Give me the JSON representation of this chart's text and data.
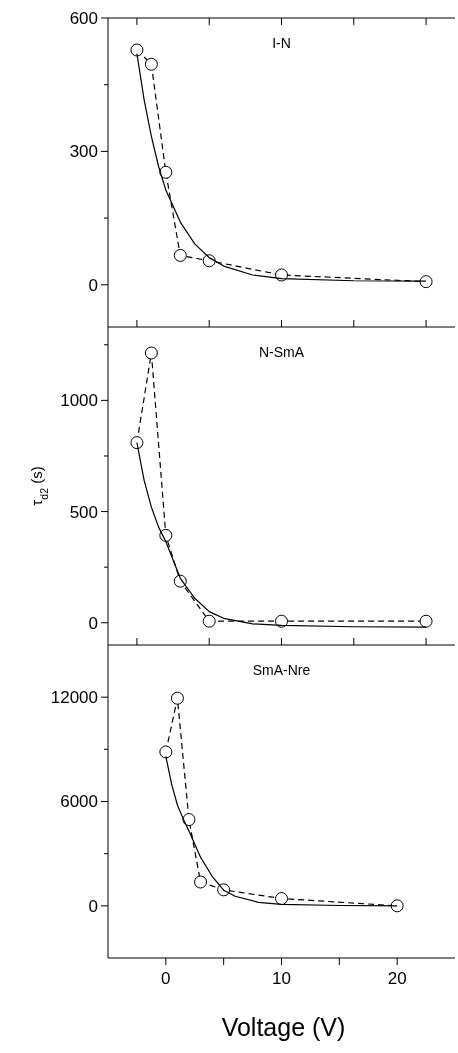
{
  "chart_data": [
    {
      "type": "line",
      "annotations": [
        "I-N"
      ],
      "xlim": [
        -5,
        25
      ],
      "xticks": [
        {
          "value": -2.5,
          "label": null
        },
        {
          "value": 3.75,
          "label": null
        },
        {
          "value": 10,
          "label": null
        },
        {
          "value": 16.25,
          "label": null
        },
        {
          "value": 22.5,
          "label": null
        }
      ],
      "ylim": [
        -95,
        600
      ],
      "yticks": [
        0,
        {
          "value": 150,
          "label": null
        },
        300,
        {
          "value": 450,
          "label": null
        },
        600
      ],
      "tick_labels": "y",
      "x": [
        -2.5,
        -1.25,
        0,
        1.25,
        3.75,
        10,
        22.5
      ],
      "series": [
        {
          "color": "#000000",
          "line_style": "dashed",
          "marker": "circle",
          "values": [
            528,
            496,
            253,
            66,
            54,
            22,
            7
          ]
        },
        {
          "color": "#000000",
          "line_style": "solid",
          "marker": "none",
          "x": [
            -2.5,
            -1.875,
            -1.25,
            -0.625,
            0,
            1.25,
            2.5,
            3.75,
            5,
            7.5,
            10,
            16.25,
            22.5
          ],
          "values": [
            520,
            416,
            334,
            266,
            213,
            141,
            92,
            61,
            42,
            22,
            14,
            9,
            8
          ]
        }
      ]
    },
    {
      "type": "line",
      "annotations": [
        "N-SmA"
      ],
      "ylabel": "τ$_{d2}$ (s)",
      "xlim": [
        -5,
        25
      ],
      "xticks": [
        {
          "value": -2.5,
          "label": null
        },
        {
          "value": 3.75,
          "label": null
        },
        {
          "value": 10,
          "label": null
        },
        {
          "value": 16.25,
          "label": null
        },
        {
          "value": 22.5,
          "label": null
        }
      ],
      "ylim": [
        -100,
        1330
      ],
      "yticks": [
        0,
        {
          "value": 250,
          "label": null
        },
        500,
        {
          "value": 750,
          "label": null
        },
        1000,
        {
          "value": 1250,
          "label": null
        }
      ],
      "tick_labels": "y",
      "x": [
        -2.5,
        -1.25,
        0,
        1.25,
        3.75,
        10,
        22.5
      ],
      "series": [
        {
          "color": "#000000",
          "line_style": "dashed",
          "marker": "circle",
          "values": [
            810,
            1213,
            393,
            187,
            7,
            7,
            7
          ]
        },
        {
          "color": "#000000",
          "line_style": "solid",
          "marker": "none",
          "x": [
            -2.5,
            -1.875,
            -1.25,
            -0.625,
            0,
            1.25,
            2.5,
            3.75,
            5,
            7.5,
            10,
            16.25,
            22.5
          ],
          "values": [
            810,
            640,
            520,
            430,
            365,
            200,
            110,
            50,
            20,
            -5,
            -12,
            -18,
            -20
          ]
        }
      ]
    },
    {
      "type": "line",
      "annotations": [
        "SmA-Nre"
      ],
      "xlabel": "Voltage (V)",
      "xlim": [
        -5,
        25
      ],
      "xticks": [
        0,
        {
          "value": 5,
          "label": null
        },
        10,
        {
          "value": 15,
          "label": null
        },
        20
      ],
      "ylim": [
        -3000,
        15000
      ],
      "yticks": [
        0,
        {
          "value": 3000,
          "label": null
        },
        6000,
        {
          "value": 9000,
          "label": null
        },
        12000
      ],
      "x": [
        0,
        1,
        2,
        3,
        5,
        10,
        20
      ],
      "series": [
        {
          "color": "#000000",
          "line_style": "dashed",
          "marker": "circle",
          "values": [
            8850,
            11940,
            4960,
            1370,
            920,
            420,
            0
          ]
        },
        {
          "color": "#000000",
          "line_style": "solid",
          "marker": "none",
          "x": [
            0,
            0.5,
            1,
            1.5,
            2,
            3,
            4,
            5,
            6,
            8,
            10,
            15,
            20
          ],
          "values": [
            8600,
            7000,
            5800,
            5000,
            4300,
            2800,
            1700,
            900,
            550,
            200,
            80,
            20,
            0
          ]
        }
      ]
    }
  ]
}
